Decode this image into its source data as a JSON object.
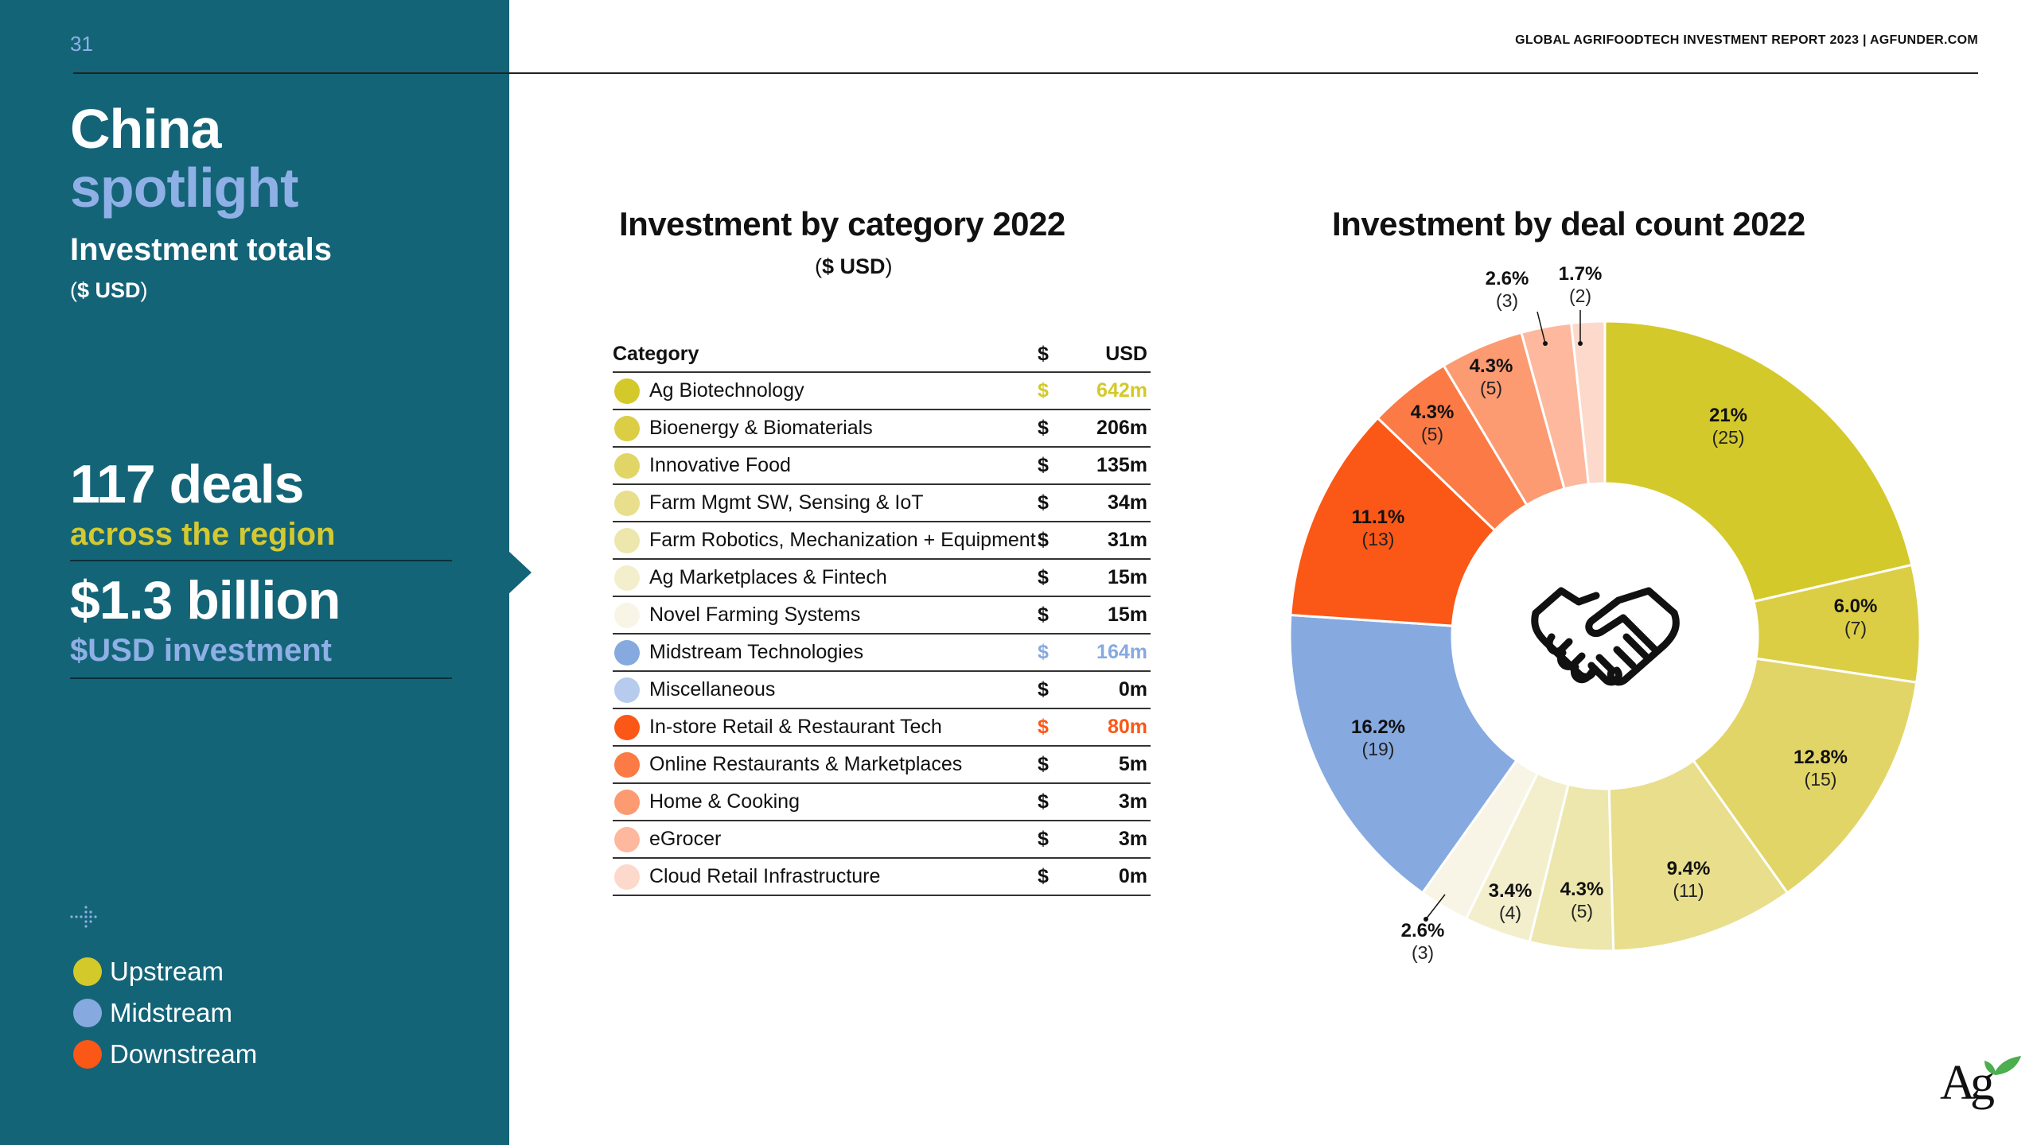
{
  "page": {
    "number": "31",
    "header": "GLOBAL AGRIFOODTECH INVESTMENT REPORT 2023 | AGFUNDER.COM"
  },
  "sidebar": {
    "title_line1": "China",
    "title_line2": "spotlight",
    "totals_label": "Investment totals",
    "totals_unit_open": "(",
    "totals_unit_bold": "$ USD",
    "totals_unit_close": ")",
    "deals_value": "117 deals",
    "deals_sub": "across the region",
    "investment_value": "$1.3 billion",
    "investment_sub": "$USD investment",
    "legend": [
      {
        "label": "Upstream",
        "color": "#d4c92a"
      },
      {
        "label": "Midstream",
        "color": "#86a9e0"
      },
      {
        "label": "Downstream",
        "color": "#fb5716"
      }
    ]
  },
  "table": {
    "title": "Investment by category 2022",
    "unit_open": "(",
    "unit_bold": "$ USD",
    "unit_close": ")",
    "col_category": "Category",
    "col_dollar": "$",
    "col_usd": "USD",
    "rows": [
      {
        "category": "Ag Biotechnology",
        "dollar": "$",
        "value": "642m",
        "dot": "#d4c92a",
        "highlight": "#d4c92a"
      },
      {
        "category": "Bioenergy & Biomaterials",
        "dollar": "$",
        "value": "206m",
        "dot": "#dbce45",
        "highlight": ""
      },
      {
        "category": "Innovative Food",
        "dollar": "$",
        "value": "135m",
        "dot": "#e2d567",
        "highlight": ""
      },
      {
        "category": "Farm Mgmt SW, Sensing & IoT",
        "dollar": "$",
        "value": "34m",
        "dot": "#e8de8c",
        "highlight": ""
      },
      {
        "category": "Farm Robotics, Mechanization + Equipment",
        "dollar": "$",
        "value": "31m",
        "dot": "#ede7ad",
        "highlight": ""
      },
      {
        "category": "Ag Marketplaces & Fintech",
        "dollar": "$",
        "value": "15m",
        "dot": "#f3efcd",
        "highlight": ""
      },
      {
        "category": "Novel Farming Systems",
        "dollar": "$",
        "value": "15m",
        "dot": "#f8f5e6",
        "highlight": ""
      },
      {
        "category": "Midstream Technologies",
        "dollar": "$",
        "value": "164m",
        "dot": "#86a9e0",
        "highlight": "#86a9e0"
      },
      {
        "category": "Miscellaneous",
        "dollar": "$",
        "value": "0m",
        "dot": "#b7cbee",
        "highlight": ""
      },
      {
        "category": "In-store Retail & Restaurant Tech",
        "dollar": "$",
        "value": "80m",
        "dot": "#fb5716",
        "highlight": "#fb5716"
      },
      {
        "category": "Online Restaurants & Marketplaces",
        "dollar": "$",
        "value": "5m",
        "dot": "#fb7a45",
        "highlight": ""
      },
      {
        "category": "Home & Cooking",
        "dollar": "$",
        "value": "3m",
        "dot": "#fc9a72",
        "highlight": ""
      },
      {
        "category": "eGrocer",
        "dollar": "$",
        "value": "3m",
        "dot": "#fdb89d",
        "highlight": ""
      },
      {
        "category": "Cloud Retail Infrastructure",
        "dollar": "$",
        "value": "0m",
        "dot": "#fdd9cb",
        "highlight": ""
      }
    ]
  },
  "chart_data": {
    "type": "pie",
    "donut": true,
    "title": "Investment by deal count 2022",
    "center_icon": "handshake-icon",
    "slices": [
      {
        "pct": "21%",
        "count": "(25)",
        "value": 25,
        "color": "#d4c92a"
      },
      {
        "pct": "6.0%",
        "count": "(7)",
        "value": 7,
        "color": "#dbce45"
      },
      {
        "pct": "12.8%",
        "count": "(15)",
        "value": 15,
        "color": "#e2d567"
      },
      {
        "pct": "9.4%",
        "count": "(11)",
        "value": 11,
        "color": "#e8de8c"
      },
      {
        "pct": "4.3%",
        "count": "(5)",
        "value": 5,
        "color": "#ede7ad"
      },
      {
        "pct": "3.4%",
        "count": "(4)",
        "value": 4,
        "color": "#f3efcd"
      },
      {
        "pct": "2.6%",
        "count": "(3)",
        "value": 3,
        "color": "#f8f5e6"
      },
      {
        "pct": "16.2%",
        "count": "(19)",
        "value": 19,
        "color": "#86a9e0"
      },
      {
        "pct": "11.1%",
        "count": "(13)",
        "value": 13,
        "color": "#fb5716"
      },
      {
        "pct": "4.3%",
        "count": "(5)",
        "value": 5,
        "color": "#fb7a45"
      },
      {
        "pct": "4.3%",
        "count": "(5)",
        "value": 5,
        "color": "#fc9a72"
      },
      {
        "pct": "2.6%",
        "count": "(3)",
        "value": 3,
        "color": "#fdb89d"
      },
      {
        "pct": "1.7%",
        "count": "(2)",
        "value": 2,
        "color": "#fdd9cb"
      }
    ]
  }
}
